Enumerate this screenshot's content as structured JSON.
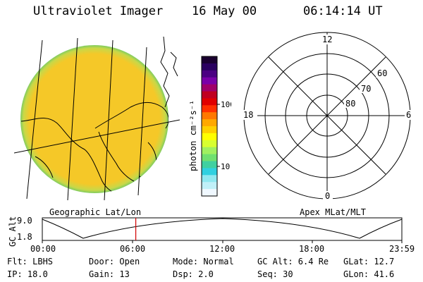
{
  "header": {
    "instrument": "Ultraviolet Imager",
    "date": "16 May 00",
    "time": "06:14:14 UT"
  },
  "colorbar": {
    "unit_label": "photon cm⁻²s⁻¹",
    "ticks": [
      "100",
      "10"
    ],
    "colors": [
      "#1a0030",
      "#2a0060",
      "#4b0082",
      "#7a00a8",
      "#a0006a",
      "#c00020",
      "#e00000",
      "#ff3000",
      "#ff7800",
      "#ffa800",
      "#ffd000",
      "#ffff00",
      "#d8ff30",
      "#a0f060",
      "#70e070",
      "#40d0a0",
      "#30d0e0",
      "#90e8f0",
      "#c0f0f8",
      "#f0f8ff"
    ]
  },
  "polar_plot": {
    "labels": {
      "top": "12",
      "bottom": "0",
      "left": "18",
      "right": "6",
      "lat_60": "60",
      "lat_70": "70",
      "lat_80": "80"
    }
  },
  "timeline": {
    "ylabel": "GC Alt",
    "y_ticks": [
      "9.0",
      "1.8"
    ],
    "left_title": "Geographic Lat/Lon",
    "right_title": "Apex MLat/MLT",
    "x_ticks": [
      "00:00",
      "06:00",
      "12:00",
      "18:00",
      "23:59"
    ],
    "current_time_fraction": 0.26
  },
  "footer": {
    "filter": "Flt: LBHS",
    "door": "Door: Open",
    "mode": "Mode: Normal",
    "gc_alt": "GC Alt: 6.4 Re",
    "glat": "GLat: 12.7",
    "ip": "IP: 18.0",
    "gain": "Gain: 13",
    "dsp": "Dsp:    2.0",
    "seq": "Seq: 30",
    "glon": "GLon:  41.6"
  },
  "colors": {
    "globe_fill": "#f5c828",
    "globe_edge": "#8ed060",
    "marker": "#d00000"
  }
}
